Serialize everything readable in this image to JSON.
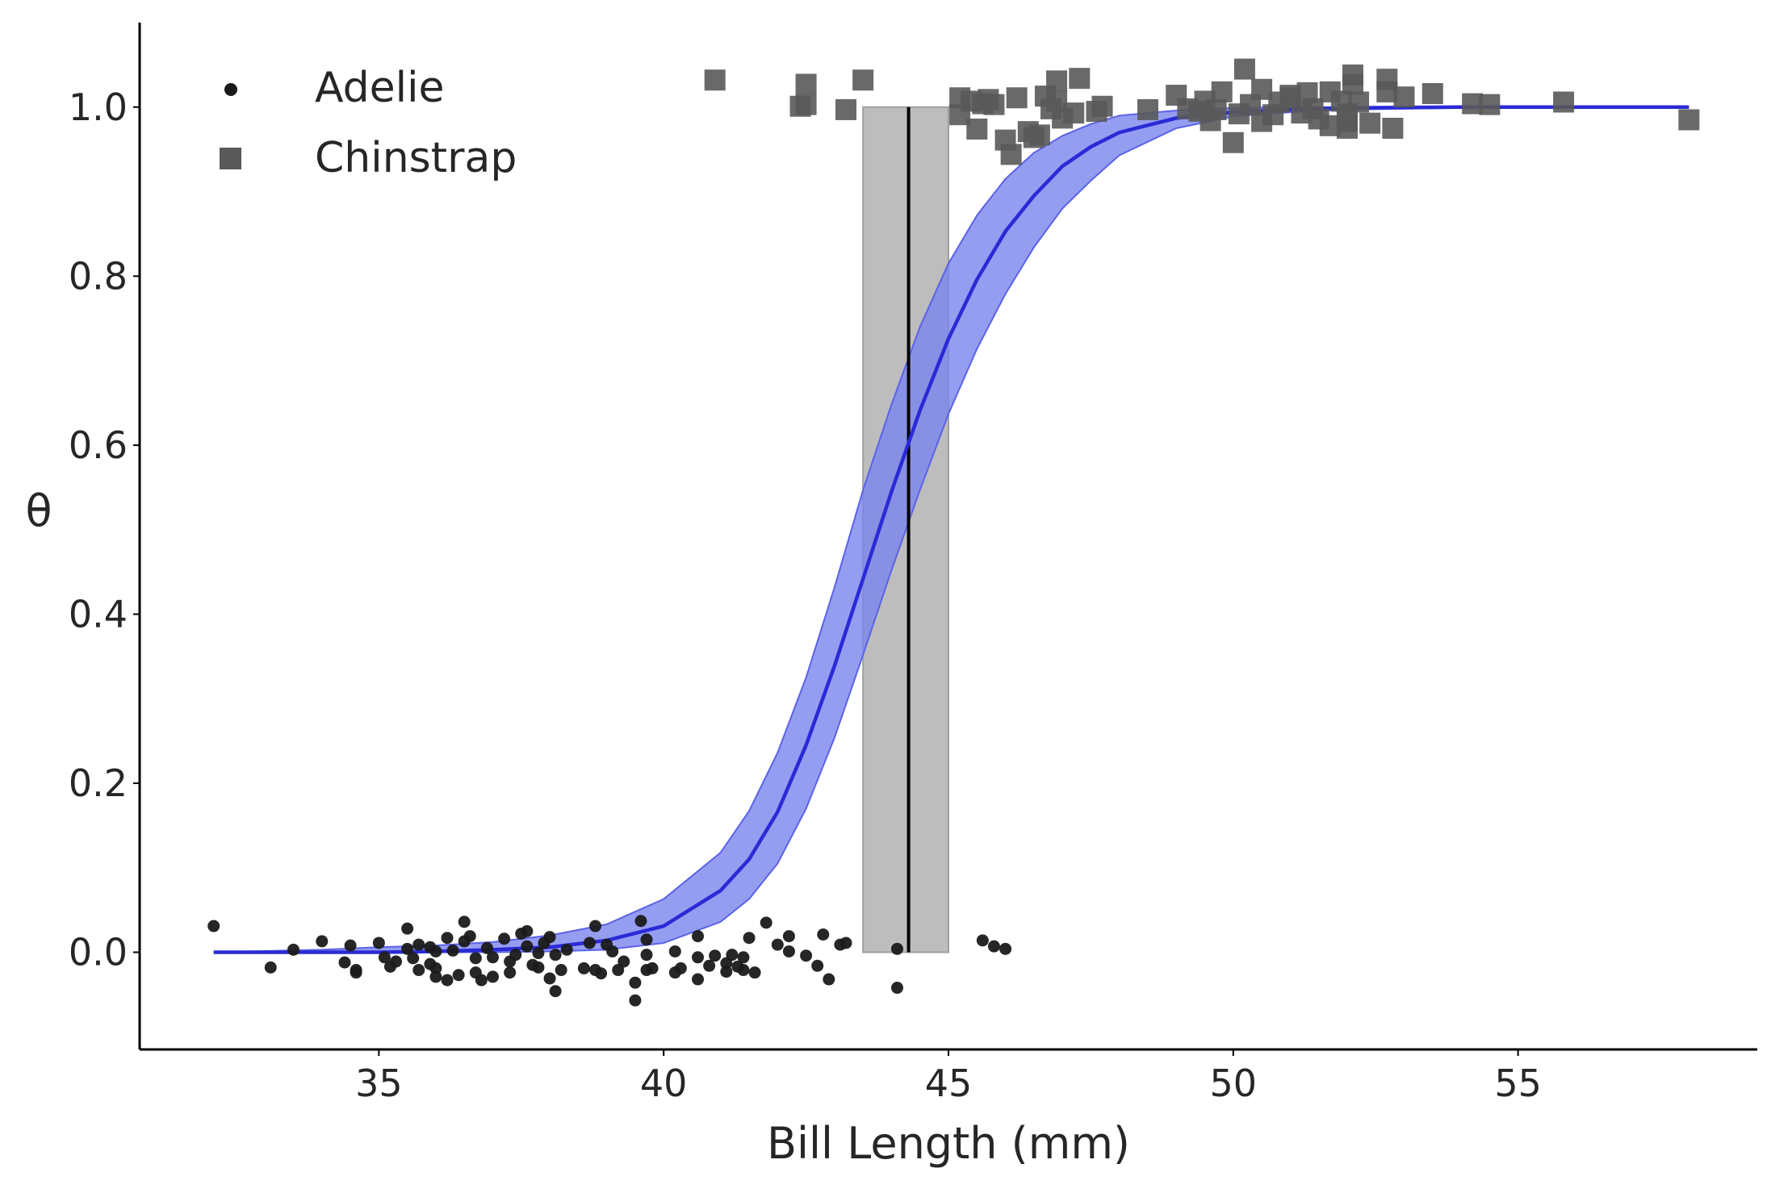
{
  "chart_data": {
    "type": "scatter",
    "title": "",
    "xlabel": "Bill Length (mm)",
    "ylabel": "θ",
    "xlim": [
      30.8,
      59.2
    ],
    "ylim": [
      -0.115,
      1.1
    ],
    "x_ticks": [
      35,
      40,
      45,
      50,
      55
    ],
    "y_ticks": [
      0.0,
      0.2,
      0.4,
      0.6,
      0.8,
      1.0
    ],
    "x_tick_labels": [
      "35",
      "40",
      "45",
      "50",
      "55"
    ],
    "y_tick_labels": [
      "0.0",
      "0.2",
      "0.4",
      "0.6",
      "0.8",
      "1.0"
    ],
    "grid": false,
    "legend_position": "top-left",
    "series": [
      {
        "name": "Adelie",
        "marker": "circle",
        "color": "#1a1a1a",
        "points": [
          [
            32.1,
            0.031
          ],
          [
            33.1,
            -0.018
          ],
          [
            33.5,
            0.003
          ],
          [
            34.0,
            0.013
          ],
          [
            34.4,
            -0.012
          ],
          [
            34.5,
            0.008
          ],
          [
            34.6,
            -0.024
          ],
          [
            34.6,
            -0.021
          ],
          [
            35.0,
            0.011
          ],
          [
            35.1,
            -0.006
          ],
          [
            35.2,
            -0.017
          ],
          [
            35.3,
            -0.011
          ],
          [
            35.5,
            0.004
          ],
          [
            35.5,
            0.028
          ],
          [
            35.6,
            -0.007
          ],
          [
            35.7,
            0.009
          ],
          [
            35.7,
            -0.021
          ],
          [
            35.9,
            0.006
          ],
          [
            35.9,
            -0.014
          ],
          [
            36.0,
            -0.019
          ],
          [
            36.0,
            -0.029
          ],
          [
            36.0,
            0.001
          ],
          [
            36.2,
            -0.033
          ],
          [
            36.2,
            0.017
          ],
          [
            36.3,
            0.002
          ],
          [
            36.4,
            -0.027
          ],
          [
            36.5,
            0.036
          ],
          [
            36.5,
            0.013
          ],
          [
            36.6,
            0.019
          ],
          [
            36.7,
            -0.007
          ],
          [
            36.7,
            -0.024
          ],
          [
            36.8,
            -0.033
          ],
          [
            36.9,
            0.005
          ],
          [
            37.0,
            -0.029
          ],
          [
            37.0,
            -0.006
          ],
          [
            37.2,
            0.016
          ],
          [
            37.3,
            -0.011
          ],
          [
            37.3,
            -0.024
          ],
          [
            37.4,
            -0.003
          ],
          [
            37.5,
            0.022
          ],
          [
            37.6,
            0.025
          ],
          [
            37.6,
            0.007
          ],
          [
            37.7,
            -0.015
          ],
          [
            37.8,
            -0.001
          ],
          [
            37.8,
            -0.018
          ],
          [
            37.9,
            0.011
          ],
          [
            38.0,
            -0.031
          ],
          [
            38.0,
            0.018
          ],
          [
            38.1,
            -0.046
          ],
          [
            38.1,
            -0.003
          ],
          [
            38.2,
            -0.021
          ],
          [
            38.3,
            0.003
          ],
          [
            38.6,
            -0.019
          ],
          [
            38.7,
            0.011
          ],
          [
            38.8,
            -0.021
          ],
          [
            38.8,
            0.031
          ],
          [
            38.9,
            -0.025
          ],
          [
            39.0,
            0.009
          ],
          [
            39.1,
            0.001
          ],
          [
            39.2,
            -0.021
          ],
          [
            39.3,
            -0.011
          ],
          [
            39.5,
            -0.057
          ],
          [
            39.5,
            -0.036
          ],
          [
            39.6,
            0.037
          ],
          [
            39.7,
            -0.003
          ],
          [
            39.7,
            -0.021
          ],
          [
            39.7,
            0.015
          ],
          [
            39.8,
            -0.019
          ],
          [
            40.2,
            -0.024
          ],
          [
            40.2,
            0.001
          ],
          [
            40.3,
            -0.019
          ],
          [
            40.6,
            -0.032
          ],
          [
            40.6,
            -0.006
          ],
          [
            40.6,
            0.019
          ],
          [
            40.8,
            -0.016
          ],
          [
            40.9,
            -0.004
          ],
          [
            41.1,
            -0.013
          ],
          [
            41.1,
            -0.023
          ],
          [
            41.2,
            -0.003
          ],
          [
            41.3,
            -0.017
          ],
          [
            41.4,
            -0.006
          ],
          [
            41.4,
            -0.021
          ],
          [
            41.5,
            0.017
          ],
          [
            41.6,
            -0.024
          ],
          [
            41.8,
            0.035
          ],
          [
            42.0,
            0.009
          ],
          [
            42.2,
            0.001
          ],
          [
            42.2,
            0.019
          ],
          [
            42.5,
            -0.004
          ],
          [
            42.7,
            -0.016
          ],
          [
            42.8,
            0.021
          ],
          [
            42.9,
            -0.032
          ],
          [
            43.1,
            0.009
          ],
          [
            43.2,
            0.011
          ],
          [
            44.1,
            0.004
          ],
          [
            44.1,
            -0.042
          ],
          [
            45.6,
            0.014
          ],
          [
            45.8,
            0.007
          ],
          [
            46.0,
            0.004
          ]
        ]
      },
      {
        "name": "Chinstrap",
        "marker": "square",
        "color": "#595959",
        "points": [
          [
            40.9,
            1.032
          ],
          [
            42.4,
            1.001
          ],
          [
            42.5,
            1.003
          ],
          [
            42.5,
            1.027
          ],
          [
            43.2,
            0.997
          ],
          [
            43.5,
            1.032
          ],
          [
            45.2,
            1.011
          ],
          [
            45.2,
            0.991
          ],
          [
            45.4,
            1.007
          ],
          [
            45.5,
            0.974
          ],
          [
            45.6,
            1.004
          ],
          [
            45.7,
            1.009
          ],
          [
            45.8,
            1.003
          ],
          [
            46.0,
            0.961
          ],
          [
            46.1,
            0.944
          ],
          [
            46.2,
            1.011
          ],
          [
            46.4,
            0.971
          ],
          [
            46.5,
            0.964
          ],
          [
            46.6,
            0.967
          ],
          [
            46.7,
            1.013
          ],
          [
            46.8,
            0.998
          ],
          [
            46.9,
            1.031
          ],
          [
            46.9,
            1.007
          ],
          [
            47.0,
            0.987
          ],
          [
            47.2,
            0.993
          ],
          [
            47.3,
            1.034
          ],
          [
            47.6,
            0.995
          ],
          [
            47.7,
            1.001
          ],
          [
            48.5,
            0.997
          ],
          [
            49.0,
            1.014
          ],
          [
            49.2,
            0.998
          ],
          [
            49.4,
            0.995
          ],
          [
            49.5,
            1.007
          ],
          [
            49.6,
            0.984
          ],
          [
            49.7,
            0.997
          ],
          [
            49.8,
            1.018
          ],
          [
            50.0,
            0.958
          ],
          [
            50.1,
            0.992
          ],
          [
            50.2,
            1.045
          ],
          [
            50.3,
            1.003
          ],
          [
            50.5,
            0.983
          ],
          [
            50.5,
            1.021
          ],
          [
            50.7,
            0.991
          ],
          [
            50.8,
            1.006
          ],
          [
            51.0,
            1.011
          ],
          [
            51.0,
            1.014
          ],
          [
            51.2,
            0.993
          ],
          [
            51.3,
            1.017
          ],
          [
            51.4,
            0.998
          ],
          [
            51.5,
            0.986
          ],
          [
            51.7,
            0.978
          ],
          [
            51.7,
            1.018
          ],
          [
            51.9,
            1.007
          ],
          [
            52.0,
            0.983
          ],
          [
            52.0,
            0.975
          ],
          [
            52.0,
            0.992
          ],
          [
            52.2,
            1.006
          ],
          [
            52.4,
            0.981
          ],
          [
            52.7,
            1.033
          ],
          [
            52.7,
            1.018
          ],
          [
            53.0,
            1.012
          ],
          [
            53.5,
            1.016
          ],
          [
            54.2,
            1.004
          ],
          [
            54.5,
            1.003
          ],
          [
            52.8,
            0.975
          ],
          [
            55.8,
            1.006
          ],
          [
            52.1,
            1.038
          ],
          [
            52.1,
            1.027
          ],
          [
            58.0,
            0.985
          ]
        ]
      }
    ],
    "fit_curve": {
      "color": "#2a2ad6",
      "band_color": "#7b84ee",
      "x": [
        32.1,
        34.0,
        35.0,
        36.0,
        37.0,
        38.0,
        39.0,
        40.0,
        41.0,
        41.5,
        42.0,
        42.5,
        43.0,
        43.5,
        44.0,
        44.5,
        45.0,
        45.5,
        46.0,
        46.5,
        47.0,
        47.5,
        48.0,
        49.0,
        50.0,
        51.0,
        52.0,
        54.0,
        56.0,
        58.0
      ],
      "y": [
        0.0,
        0.0,
        0.0,
        0.001,
        0.003,
        0.006,
        0.014,
        0.031,
        0.073,
        0.11,
        0.166,
        0.245,
        0.339,
        0.442,
        0.545,
        0.641,
        0.726,
        0.796,
        0.853,
        0.895,
        0.93,
        0.953,
        0.97,
        0.987,
        0.994,
        0.997,
        0.999,
        1.0,
        1.0,
        1.0
      ],
      "y_lower": [
        0.0,
        0.0,
        0.0,
        0.0,
        0.0,
        0.001,
        0.003,
        0.011,
        0.036,
        0.063,
        0.105,
        0.17,
        0.254,
        0.352,
        0.452,
        0.547,
        0.637,
        0.714,
        0.779,
        0.834,
        0.88,
        0.913,
        0.943,
        0.975,
        0.989,
        0.994,
        0.997,
        0.999,
        1.0,
        1.0
      ],
      "y_upper": [
        0.0,
        0.003,
        0.006,
        0.008,
        0.012,
        0.02,
        0.033,
        0.063,
        0.118,
        0.167,
        0.236,
        0.325,
        0.432,
        0.547,
        0.648,
        0.74,
        0.815,
        0.872,
        0.915,
        0.946,
        0.966,
        0.98,
        0.99,
        0.996,
        0.999,
        1.0,
        1.0,
        1.0,
        1.0,
        1.0
      ]
    },
    "decision_boundary": {
      "x": 44.3,
      "band_x": [
        43.5,
        45.0
      ],
      "y_range": [
        0.0,
        1.0
      ],
      "line_color": "#000000",
      "band_color": "#bdbdbd"
    }
  }
}
